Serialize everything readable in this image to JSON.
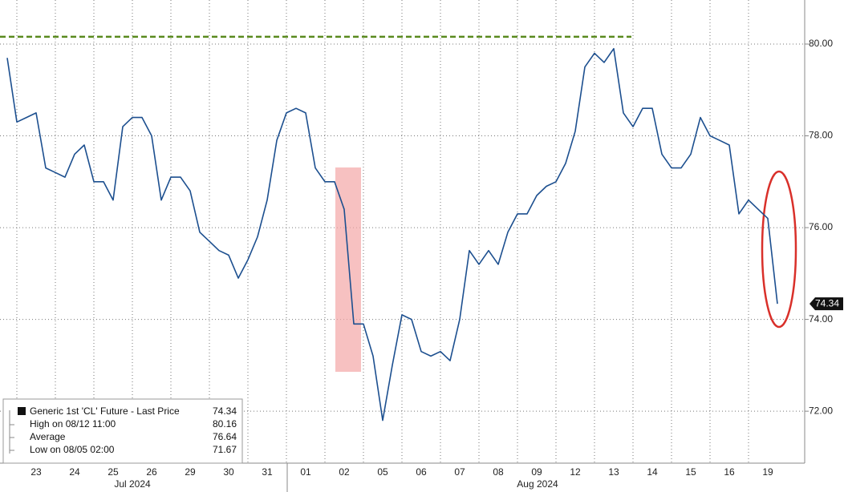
{
  "chart_data": {
    "type": "line",
    "x": [
      "07/22 18:00",
      "07/23 00:00",
      "07/23 06:00",
      "07/23 12:00",
      "07/23 18:00",
      "07/24 00:00",
      "07/24 06:00",
      "07/24 12:00",
      "07/24 18:00",
      "07/25 00:00",
      "07/25 06:00",
      "07/25 12:00",
      "07/25 18:00",
      "07/26 00:00",
      "07/26 06:00",
      "07/26 12:00",
      "07/26 18:00",
      "07/29 00:00",
      "07/29 06:00",
      "07/29 12:00",
      "07/29 18:00",
      "07/30 00:00",
      "07/30 06:00",
      "07/30 12:00",
      "07/30 18:00",
      "07/31 00:00",
      "07/31 06:00",
      "07/31 12:00",
      "07/31 18:00",
      "08/01 00:00",
      "08/01 06:00",
      "08/01 12:00",
      "08/01 18:00",
      "08/02 00:00",
      "08/02 06:00",
      "08/02 12:00",
      "08/02 18:00",
      "08/05 00:00",
      "08/05 06:00",
      "08/05 12:00",
      "08/05 18:00",
      "08/06 00:00",
      "08/06 06:00",
      "08/06 12:00",
      "08/06 18:00",
      "08/07 00:00",
      "08/07 06:00",
      "08/07 12:00",
      "08/07 18:00",
      "08/08 00:00",
      "08/08 06:00",
      "08/08 12:00",
      "08/08 18:00",
      "08/09 00:00",
      "08/09 06:00",
      "08/09 12:00",
      "08/09 18:00",
      "08/12 00:00",
      "08/12 06:00",
      "08/12 12:00",
      "08/12 18:00",
      "08/13 00:00",
      "08/13 06:00",
      "08/13 12:00",
      "08/13 18:00",
      "08/14 00:00",
      "08/14 06:00",
      "08/14 12:00",
      "08/14 18:00",
      "08/15 00:00",
      "08/15 06:00",
      "08/15 12:00",
      "08/15 18:00",
      "08/16 00:00",
      "08/16 06:00",
      "08/16 12:00",
      "08/16 18:00",
      "08/19 00:00",
      "08/19 06:00",
      "08/19 12:00",
      "08/19 18:00"
    ],
    "series": [
      {
        "name": "Generic 1st 'CL' Future - Last Price",
        "color": "#1c4f8f",
        "values": [
          79.7,
          78.3,
          78.4,
          78.5,
          77.3,
          77.2,
          77.1,
          77.6,
          77.8,
          77.0,
          77.0,
          76.6,
          78.2,
          78.4,
          78.4,
          78.0,
          76.6,
          77.1,
          77.1,
          76.8,
          75.9,
          75.7,
          75.5,
          75.4,
          74.9,
          75.3,
          75.8,
          76.6,
          77.9,
          78.5,
          78.6,
          78.5,
          77.3,
          77.0,
          77.0,
          76.4,
          73.9,
          73.9,
          73.2,
          71.8,
          73.0,
          74.1,
          74.0,
          73.3,
          73.2,
          73.3,
          73.1,
          74.0,
          75.5,
          75.2,
          75.5,
          75.2,
          75.9,
          76.3,
          76.3,
          76.7,
          76.9,
          77.0,
          77.4,
          78.1,
          79.5,
          79.8,
          79.6,
          79.9,
          78.5,
          78.2,
          78.6,
          78.6,
          77.6,
          77.3,
          77.3,
          77.6,
          78.4,
          78.0,
          77.9,
          77.8,
          76.3,
          76.6,
          76.4,
          76.2,
          74.34
        ]
      }
    ],
    "ylim": [
      70.92,
      80.96
    ],
    "yticks": [
      {
        "value": 72,
        "label": "72.00"
      },
      {
        "value": 74,
        "label": "74.00"
      },
      {
        "value": 76,
        "label": "76.00"
      },
      {
        "value": 78,
        "label": "78.00"
      },
      {
        "value": 80,
        "label": "80.00"
      }
    ],
    "xticks": [
      {
        "value": "07/23 12:00",
        "label": "23"
      },
      {
        "value": "07/24 12:00",
        "label": "24"
      },
      {
        "value": "07/25 12:00",
        "label": "25"
      },
      {
        "value": "07/26 12:00",
        "label": "26"
      },
      {
        "value": "07/29 12:00",
        "label": "29"
      },
      {
        "value": "07/30 12:00",
        "label": "30"
      },
      {
        "value": "07/31 12:00",
        "label": "31"
      },
      {
        "value": "08/01 12:00",
        "label": "01"
      },
      {
        "value": "08/02 12:00",
        "label": "02"
      },
      {
        "value": "08/05 12:00",
        "label": "05"
      },
      {
        "value": "08/06 12:00",
        "label": "06"
      },
      {
        "value": "08/07 12:00",
        "label": "07"
      },
      {
        "value": "08/08 12:00",
        "label": "08"
      },
      {
        "value": "08/09 12:00",
        "label": "09"
      },
      {
        "value": "08/12 12:00",
        "label": "12"
      },
      {
        "value": "08/13 12:00",
        "label": "13"
      },
      {
        "value": "08/14 12:00",
        "label": "14"
      },
      {
        "value": "08/15 12:00",
        "label": "15"
      },
      {
        "value": "08/16 12:00",
        "label": "16"
      },
      {
        "value": "08/19 12:00",
        "label": "19"
      }
    ],
    "periods": [
      "Jul 2024",
      "Aug 2024"
    ],
    "grid": true,
    "last_price": 74.34,
    "stats": [
      {
        "label": "High on 08/12 11:00",
        "value": 80.16
      },
      {
        "label": "Average",
        "value": 76.64
      },
      {
        "label": "Low on 08/05 02:00",
        "value": 71.67
      }
    ]
  }
}
